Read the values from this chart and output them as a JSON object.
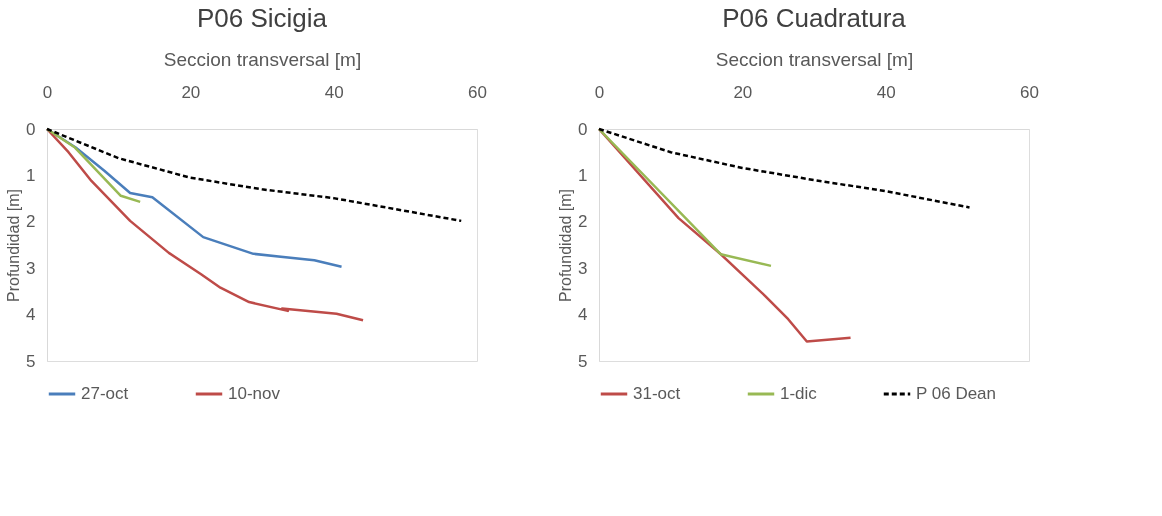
{
  "chart_data": [
    {
      "type": "line",
      "title": "P06 Sicigia",
      "xlabel": "Seccion transversal  [m]",
      "ylabel": "Profundidad [m]",
      "xlim": [
        0,
        60
      ],
      "xticks": [
        0,
        20,
        40,
        60
      ],
      "ylim": [
        5,
        0
      ],
      "yticks": [
        0,
        1,
        2,
        3,
        4,
        5
      ],
      "grid": false,
      "legend": "bottom",
      "series": [
        {
          "name": "27-oct",
          "color": "#4a7ebb",
          "line_style": "solid",
          "x": [
            0,
            4,
            8,
            11.6,
            14.7,
            21.8,
            28.8,
            37.3,
            41.1
          ],
          "values": [
            0,
            0.4,
            0.9,
            1.38,
            1.47,
            2.33,
            2.69,
            2.83,
            2.97
          ]
        },
        {
          "name": "10-nov",
          "color": "#be4b48",
          "line_style": "solid",
          "x": [
            0,
            3,
            6.2,
            11.6,
            17,
            21.5,
            24.2,
            28.2,
            33.6,
            32.8,
            40.4,
            44.1
          ],
          "values": [
            0,
            0.5,
            1.12,
            1.98,
            2.67,
            3.13,
            3.42,
            3.73,
            3.92,
            3.87,
            3.98,
            4.12
          ]
        },
        {
          "name": null,
          "color": "#98b954",
          "line_style": "solid",
          "x": [
            0,
            3.9,
            10.3,
            13
          ],
          "values": [
            0,
            0.4,
            1.44,
            1.57
          ]
        },
        {
          "name": null,
          "color": "#000000",
          "line_style": "dashed",
          "x": [
            0,
            10,
            20,
            30,
            40,
            57.8
          ],
          "values": [
            0,
            0.63,
            1.05,
            1.3,
            1.49,
            1.98
          ]
        }
      ]
    },
    {
      "type": "line",
      "title": "P06 Cuadratura",
      "xlabel": "Seccion transversal  [m]",
      "ylabel": "Profundidad [m]",
      "xlim": [
        0,
        60
      ],
      "xticks": [
        0,
        20,
        40,
        60
      ],
      "ylim": [
        5,
        0
      ],
      "yticks": [
        0,
        1,
        2,
        3,
        4,
        5
      ],
      "grid": false,
      "legend": "bottom",
      "series": [
        {
          "name": "31-oct",
          "color": "#be4b48",
          "line_style": "solid",
          "x": [
            0,
            11.1,
            17,
            23.2,
            26.4,
            29,
            35.1
          ],
          "values": [
            0,
            1.92,
            2.7,
            3.6,
            4.1,
            4.58,
            4.5
          ]
        },
        {
          "name": "1-dic",
          "color": "#98b954",
          "line_style": "solid",
          "x": [
            0,
            17,
            24
          ],
          "values": [
            0,
            2.7,
            2.95
          ]
        },
        {
          "name": "P 06 Dean",
          "color": "#000000",
          "line_style": "dashed",
          "x": [
            0,
            10,
            20,
            30,
            40,
            51.7
          ],
          "values": [
            0,
            0.5,
            0.84,
            1.1,
            1.34,
            1.69
          ]
        }
      ]
    }
  ]
}
